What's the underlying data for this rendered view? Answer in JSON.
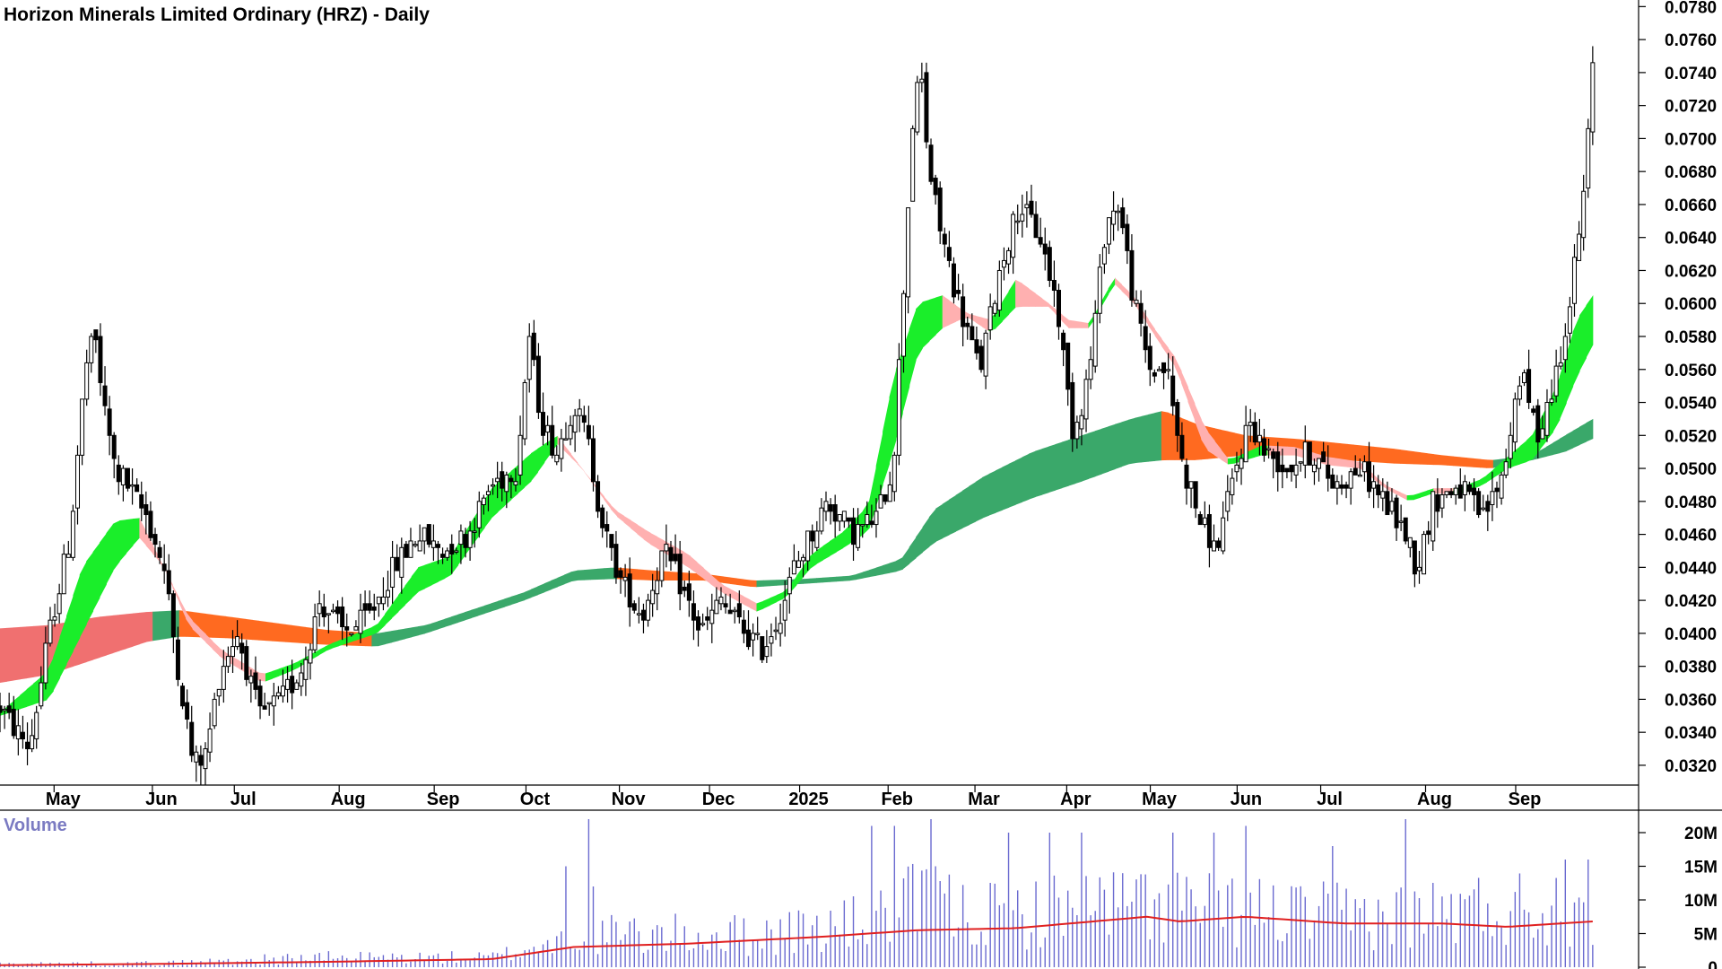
{
  "chart_data": {
    "type": "candlestick",
    "title": "Horizon Minerals Limited Ordinary (HRZ) - Daily",
    "price_axis": {
      "range": [
        0.0308,
        0.0784
      ],
      "ticks": [
        "0.0320",
        "0.0340",
        "0.0360",
        "0.0380",
        "0.0400",
        "0.0420",
        "0.0440",
        "0.0460",
        "0.0480",
        "0.0500",
        "0.0520",
        "0.0540",
        "0.0560",
        "0.0580",
        "0.0600",
        "0.0620",
        "0.0640",
        "0.0660",
        "0.0680",
        "0.0700",
        "0.0720",
        "0.0740",
        "0.0760",
        "0.0780"
      ]
    },
    "x_axis": {
      "months": [
        {
          "label": "May",
          "pos": 0.033
        },
        {
          "label": "Jun",
          "pos": 0.093
        },
        {
          "label": "Jul",
          "pos": 0.143
        },
        {
          "label": "Aug",
          "pos": 0.207
        },
        {
          "label": "Sep",
          "pos": 0.265
        },
        {
          "label": "Oct",
          "pos": 0.321
        },
        {
          "label": "Nov",
          "pos": 0.378
        },
        {
          "label": "Dec",
          "pos": 0.433
        },
        {
          "label": "2025",
          "pos": 0.488
        },
        {
          "label": "Feb",
          "pos": 0.542
        },
        {
          "label": "Mar",
          "pos": 0.595
        },
        {
          "label": "Apr",
          "pos": 0.651
        },
        {
          "label": "May",
          "pos": 0.702
        },
        {
          "label": "Jun",
          "pos": 0.755
        },
        {
          "label": "Jul",
          "pos": 0.806
        },
        {
          "label": "Aug",
          "pos": 0.87
        },
        {
          "label": "Sep",
          "pos": 0.925
        }
      ]
    },
    "price_anchors": [
      [
        0.0,
        0.0355
      ],
      [
        0.018,
        0.033
      ],
      [
        0.03,
        0.04
      ],
      [
        0.043,
        0.046
      ],
      [
        0.052,
        0.056
      ],
      [
        0.058,
        0.058
      ],
      [
        0.063,
        0.054
      ],
      [
        0.07,
        0.05
      ],
      [
        0.078,
        0.049
      ],
      [
        0.09,
        0.047
      ],
      [
        0.1,
        0.044
      ],
      [
        0.11,
        0.037
      ],
      [
        0.118,
        0.032
      ],
      [
        0.125,
        0.0325
      ],
      [
        0.135,
        0.038
      ],
      [
        0.145,
        0.04
      ],
      [
        0.158,
        0.035
      ],
      [
        0.172,
        0.036
      ],
      [
        0.185,
        0.038
      ],
      [
        0.195,
        0.042
      ],
      [
        0.21,
        0.04
      ],
      [
        0.225,
        0.041
      ],
      [
        0.24,
        0.044
      ],
      [
        0.255,
        0.046
      ],
      [
        0.27,
        0.045
      ],
      [
        0.285,
        0.046
      ],
      [
        0.3,
        0.049
      ],
      [
        0.315,
        0.05
      ],
      [
        0.323,
        0.058
      ],
      [
        0.33,
        0.053
      ],
      [
        0.34,
        0.051
      ],
      [
        0.35,
        0.054
      ],
      [
        0.358,
        0.052
      ],
      [
        0.365,
        0.048
      ],
      [
        0.372,
        0.045
      ],
      [
        0.38,
        0.043
      ],
      [
        0.392,
        0.041
      ],
      [
        0.405,
        0.045
      ],
      [
        0.415,
        0.043
      ],
      [
        0.428,
        0.04
      ],
      [
        0.44,
        0.042
      ],
      [
        0.455,
        0.04
      ],
      [
        0.465,
        0.039
      ],
      [
        0.475,
        0.041
      ],
      [
        0.485,
        0.044
      ],
      [
        0.495,
        0.046
      ],
      [
        0.505,
        0.048
      ],
      [
        0.52,
        0.046
      ],
      [
        0.535,
        0.047
      ],
      [
        0.545,
        0.05
      ],
      [
        0.552,
        0.062
      ],
      [
        0.557,
        0.071
      ],
      [
        0.562,
        0.074
      ],
      [
        0.567,
        0.068
      ],
      [
        0.575,
        0.064
      ],
      [
        0.585,
        0.06
      ],
      [
        0.598,
        0.056
      ],
      [
        0.61,
        0.062
      ],
      [
        0.622,
        0.066
      ],
      [
        0.635,
        0.064
      ],
      [
        0.645,
        0.06
      ],
      [
        0.655,
        0.052
      ],
      [
        0.665,
        0.056
      ],
      [
        0.675,
        0.065
      ],
      [
        0.683,
        0.066
      ],
      [
        0.692,
        0.06
      ],
      [
        0.702,
        0.056
      ],
      [
        0.712,
        0.056
      ],
      [
        0.722,
        0.05
      ],
      [
        0.732,
        0.047
      ],
      [
        0.742,
        0.045
      ],
      [
        0.752,
        0.049
      ],
      [
        0.762,
        0.053
      ],
      [
        0.772,
        0.051
      ],
      [
        0.785,
        0.05
      ],
      [
        0.8,
        0.051
      ],
      [
        0.815,
        0.049
      ],
      [
        0.83,
        0.05
      ],
      [
        0.845,
        0.048
      ],
      [
        0.858,
        0.046
      ],
      [
        0.865,
        0.044
      ],
      [
        0.875,
        0.048
      ],
      [
        0.89,
        0.049
      ],
      [
        0.905,
        0.047
      ],
      [
        0.918,
        0.05
      ],
      [
        0.928,
        0.056
      ],
      [
        0.938,
        0.052
      ],
      [
        0.948,
        0.055
      ],
      [
        0.958,
        0.06
      ],
      [
        0.966,
        0.066
      ],
      [
        0.972,
        0.074
      ]
    ],
    "wma": {
      "fast": [
        [
          0.0,
          0.035,
          0.0352
        ],
        [
          0.03,
          0.036,
          0.0378
        ],
        [
          0.05,
          0.04,
          0.044
        ],
        [
          0.07,
          0.044,
          0.0468
        ],
        [
          0.085,
          0.0458,
          0.047
        ],
        [
          0.1,
          0.044,
          0.044
        ],
        [
          0.115,
          0.0405,
          0.041
        ],
        [
          0.135,
          0.0385,
          0.039
        ],
        [
          0.16,
          0.037,
          0.0375
        ],
        [
          0.18,
          0.0378,
          0.0382
        ],
        [
          0.2,
          0.039,
          0.0393
        ],
        [
          0.23,
          0.04,
          0.0405
        ],
        [
          0.255,
          0.0425,
          0.044
        ],
        [
          0.275,
          0.0435,
          0.0447
        ],
        [
          0.3,
          0.047,
          0.0488
        ],
        [
          0.325,
          0.0493,
          0.051
        ],
        [
          0.34,
          0.0515,
          0.052
        ],
        [
          0.355,
          0.05,
          0.05
        ],
        [
          0.375,
          0.0472,
          0.0475
        ],
        [
          0.395,
          0.0455,
          0.0462
        ],
        [
          0.42,
          0.044,
          0.0448
        ],
        [
          0.44,
          0.0425,
          0.043
        ],
        [
          0.462,
          0.0413,
          0.0418
        ],
        [
          0.48,
          0.0422,
          0.0426
        ],
        [
          0.495,
          0.044,
          0.0448
        ],
        [
          0.515,
          0.0452,
          0.0462
        ],
        [
          0.53,
          0.0462,
          0.0478
        ],
        [
          0.545,
          0.051,
          0.0555
        ],
        [
          0.56,
          0.057,
          0.06
        ],
        [
          0.575,
          0.0585,
          0.0605
        ],
        [
          0.59,
          0.0592,
          0.0594
        ],
        [
          0.605,
          0.0582,
          0.059
        ],
        [
          0.62,
          0.0598,
          0.0615
        ],
        [
          0.64,
          0.0598,
          0.06
        ],
        [
          0.652,
          0.0585,
          0.059
        ],
        [
          0.665,
          0.0585,
          0.0588
        ],
        [
          0.68,
          0.0612,
          0.0616
        ],
        [
          0.692,
          0.06,
          0.0604
        ],
        [
          0.705,
          0.058,
          0.0584
        ],
        [
          0.718,
          0.056,
          0.0566
        ],
        [
          0.735,
          0.0512,
          0.0525
        ],
        [
          0.75,
          0.0502,
          0.0505
        ],
        [
          0.77,
          0.0508,
          0.0514
        ],
        [
          0.79,
          0.0508,
          0.0513
        ],
        [
          0.81,
          0.0502,
          0.0507
        ],
        [
          0.83,
          0.05,
          0.0504
        ],
        [
          0.845,
          0.0488,
          0.049
        ],
        [
          0.86,
          0.048,
          0.0483
        ],
        [
          0.875,
          0.0485,
          0.0488
        ],
        [
          0.89,
          0.0484,
          0.0488
        ],
        [
          0.905,
          0.049,
          0.0494
        ],
        [
          0.92,
          0.05,
          0.0507
        ],
        [
          0.935,
          0.0505,
          0.052
        ],
        [
          0.95,
          0.0525,
          0.055
        ],
        [
          0.962,
          0.0555,
          0.059
        ],
        [
          0.972,
          0.0575,
          0.0605
        ]
      ],
      "slow": [
        [
          0.0,
          0.037,
          0.0403
        ],
        [
          0.03,
          0.0375,
          0.0405
        ],
        [
          0.06,
          0.0385,
          0.041
        ],
        [
          0.09,
          0.0395,
          0.0413
        ],
        [
          0.11,
          0.0398,
          0.0414
        ],
        [
          0.14,
          0.0397,
          0.041
        ],
        [
          0.17,
          0.0395,
          0.0406
        ],
        [
          0.2,
          0.0393,
          0.0402
        ],
        [
          0.23,
          0.0392,
          0.04
        ],
        [
          0.26,
          0.04,
          0.0405
        ],
        [
          0.29,
          0.041,
          0.0415
        ],
        [
          0.32,
          0.042,
          0.0425
        ],
        [
          0.35,
          0.0432,
          0.0438
        ],
        [
          0.375,
          0.0433,
          0.044
        ],
        [
          0.4,
          0.0432,
          0.0438
        ],
        [
          0.43,
          0.0432,
          0.0436
        ],
        [
          0.46,
          0.0428,
          0.0432
        ],
        [
          0.49,
          0.043,
          0.0433
        ],
        [
          0.52,
          0.0432,
          0.0435
        ],
        [
          0.55,
          0.0438,
          0.0445
        ],
        [
          0.57,
          0.0455,
          0.0475
        ],
        [
          0.6,
          0.047,
          0.0495
        ],
        [
          0.63,
          0.0482,
          0.051
        ],
        [
          0.66,
          0.0492,
          0.052
        ],
        [
          0.69,
          0.0503,
          0.053
        ],
        [
          0.71,
          0.0505,
          0.0535
        ],
        [
          0.73,
          0.0505,
          0.0527
        ],
        [
          0.76,
          0.0508,
          0.052
        ],
        [
          0.79,
          0.0508,
          0.0518
        ],
        [
          0.82,
          0.0505,
          0.0515
        ],
        [
          0.85,
          0.0503,
          0.0512
        ],
        [
          0.88,
          0.0502,
          0.0508
        ],
        [
          0.91,
          0.05,
          0.0505
        ],
        [
          0.935,
          0.0505,
          0.0508
        ],
        [
          0.955,
          0.051,
          0.052
        ],
        [
          0.972,
          0.0518,
          0.053
        ]
      ]
    },
    "volume": {
      "title": "Volume",
      "ticks": [
        "0",
        "5M",
        "10M",
        "15M",
        "20M"
      ],
      "max": 22000000,
      "anchors": [
        [
          0.0,
          0.5
        ],
        [
          0.1,
          0.6
        ],
        [
          0.19,
          1.5
        ],
        [
          0.3,
          1.5
        ],
        [
          0.34,
          4
        ],
        [
          0.36,
          5
        ],
        [
          0.45,
          5
        ],
        [
          0.5,
          6
        ],
        [
          0.53,
          7
        ],
        [
          0.56,
          10
        ],
        [
          0.6,
          8
        ],
        [
          0.65,
          9
        ],
        [
          0.7,
          10
        ],
        [
          0.75,
          9
        ],
        [
          0.8,
          8
        ],
        [
          0.85,
          8
        ],
        [
          0.9,
          9
        ],
        [
          0.972,
          10
        ]
      ],
      "avg_anchors": [
        [
          0.0,
          0.3
        ],
        [
          0.1,
          0.5
        ],
        [
          0.2,
          0.8
        ],
        [
          0.3,
          1.2
        ],
        [
          0.35,
          3
        ],
        [
          0.42,
          3.5
        ],
        [
          0.5,
          4.5
        ],
        [
          0.56,
          5.5
        ],
        [
          0.62,
          5.8
        ],
        [
          0.7,
          7.5
        ],
        [
          0.72,
          6.8
        ],
        [
          0.76,
          7.5
        ],
        [
          0.82,
          6.5
        ],
        [
          0.88,
          6.5
        ],
        [
          0.92,
          6.0
        ],
        [
          0.972,
          6.8
        ]
      ],
      "spikes": [
        [
          0.358,
          22
        ],
        [
          0.345,
          15
        ],
        [
          0.361,
          12
        ],
        [
          0.532,
          21
        ],
        [
          0.545,
          21
        ],
        [
          0.569,
          22
        ],
        [
          0.572,
          15
        ],
        [
          0.615,
          20
        ],
        [
          0.64,
          20
        ],
        [
          0.66,
          20
        ],
        [
          0.715,
          20
        ],
        [
          0.742,
          20
        ],
        [
          0.76,
          21
        ],
        [
          0.812,
          18
        ],
        [
          0.858,
          22
        ],
        [
          0.955,
          16
        ],
        [
          0.97,
          16
        ]
      ]
    }
  }
}
